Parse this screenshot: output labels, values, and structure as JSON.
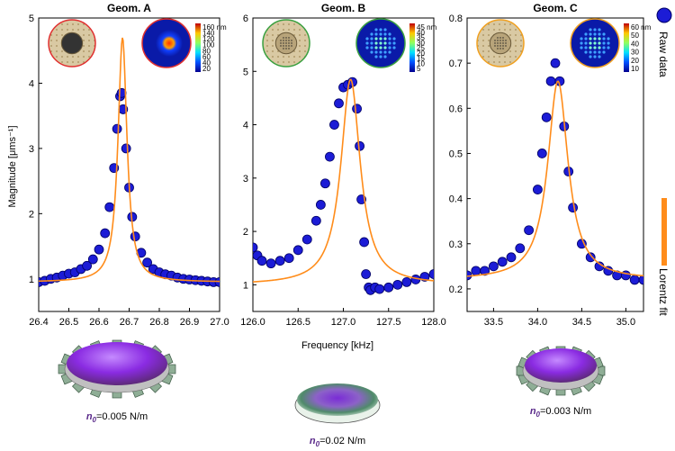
{
  "figure": {
    "y_axis_label": "Magnitude [μms⁻¹]",
    "x_axis_label": "Frequency [kHz]",
    "legend": {
      "raw": "Raw data",
      "fit": "Lorentz fit"
    },
    "colors": {
      "raw_fill": "#1c1cd6",
      "raw_edge": "#000066",
      "fit": "#ff8c1a"
    }
  },
  "chart_data": [
    {
      "type": "scatter",
      "title": "Geom. A",
      "xlabel": "Frequency [kHz]",
      "ylabel": "Magnitude [μms⁻¹]",
      "xlim": [
        26.4,
        27.0
      ],
      "ylim": [
        0.5,
        5.0
      ],
      "xticks": [
        26.4,
        26.5,
        26.6,
        26.7,
        26.8,
        26.9,
        27.0
      ],
      "xtick_labels": [
        "26.4",
        "26.5",
        "26.6",
        "26.7",
        "26.8",
        "26.9",
        "27.0"
      ],
      "yticks": [
        1,
        2,
        3,
        4,
        5
      ],
      "ytick_labels": [
        "1",
        "2",
        "3",
        "4",
        "5"
      ],
      "series": [
        {
          "name": "Raw data",
          "x": [
            26.4,
            26.42,
            26.44,
            26.46,
            26.48,
            26.5,
            26.52,
            26.54,
            26.56,
            26.58,
            26.6,
            26.62,
            26.635,
            26.65,
            26.66,
            26.67,
            26.675,
            26.68,
            26.69,
            26.7,
            26.71,
            26.72,
            26.74,
            26.76,
            26.78,
            26.8,
            26.82,
            26.84,
            26.86,
            26.88,
            26.9,
            26.92,
            26.94,
            26.96,
            26.98,
            27.0
          ],
          "y": [
            0.95,
            0.97,
            1.0,
            1.02,
            1.05,
            1.08,
            1.1,
            1.15,
            1.2,
            1.3,
            1.45,
            1.7,
            2.1,
            2.7,
            3.3,
            3.8,
            3.85,
            3.6,
            3.0,
            2.4,
            1.95,
            1.65,
            1.4,
            1.25,
            1.15,
            1.1,
            1.07,
            1.05,
            1.02,
            1.0,
            0.99,
            0.98,
            0.97,
            0.96,
            0.95,
            0.95
          ]
        },
        {
          "name": "Lorentz fit",
          "f0": 26.678,
          "gamma": 0.018,
          "peak": 3.75,
          "baseline": 0.95
        }
      ],
      "colorbar": {
        "unit": "nm",
        "labels": [
          "160",
          "140",
          "120",
          "100",
          "80",
          "60",
          "40",
          "20"
        ]
      },
      "stiffness_label": {
        "symbol": "n",
        "subscript": "0",
        "value": "=0.005 N/m"
      }
    },
    {
      "type": "scatter",
      "title": "Geom. B",
      "xlabel": "Frequency [kHz]",
      "ylabel": "",
      "xlim": [
        126.0,
        128.0
      ],
      "ylim": [
        0.5,
        6.0
      ],
      "xticks": [
        126.0,
        126.5,
        127.0,
        127.5,
        128.0
      ],
      "xtick_labels": [
        "126.0",
        "126.5",
        "127.0",
        "127.5",
        "128.0"
      ],
      "yticks": [
        1,
        2,
        3,
        4,
        5,
        6
      ],
      "ytick_labels": [
        "1",
        "2",
        "3",
        "4",
        "5",
        "6"
      ],
      "series": [
        {
          "name": "Raw data",
          "x": [
            126.0,
            126.05,
            126.1,
            126.2,
            126.3,
            126.4,
            126.5,
            126.6,
            126.7,
            126.75,
            126.8,
            126.85,
            126.9,
            126.95,
            127.0,
            127.05,
            127.1,
            127.15,
            127.18,
            127.2,
            127.23,
            127.25,
            127.28,
            127.3,
            127.35,
            127.4,
            127.5,
            127.6,
            127.7,
            127.8,
            127.9,
            128.0
          ],
          "y": [
            1.7,
            1.55,
            1.45,
            1.4,
            1.45,
            1.5,
            1.65,
            1.85,
            2.2,
            2.5,
            2.9,
            3.4,
            4.0,
            4.4,
            4.7,
            4.75,
            4.8,
            4.3,
            3.6,
            2.6,
            1.8,
            1.2,
            0.95,
            0.9,
            0.95,
            0.92,
            0.95,
            1.0,
            1.05,
            1.1,
            1.15,
            1.2
          ]
        },
        {
          "name": "Lorentz fit",
          "f0": 127.08,
          "gamma": 0.13,
          "peak": 3.85,
          "baseline": 1.0
        }
      ],
      "colorbar": {
        "unit": "nm",
        "labels": [
          "45",
          "40",
          "35",
          "30",
          "25",
          "20",
          "15",
          "10",
          "5"
        ]
      }
    },
    {
      "type": "scatter",
      "title": "Geom. C",
      "xlabel": "Frequency [kHz]",
      "ylabel": "",
      "xlim": [
        33.2,
        35.2
      ],
      "ylim": [
        0.15,
        0.8
      ],
      "xticks": [
        33.5,
        34.0,
        34.5,
        35.0
      ],
      "xtick_labels": [
        "33.5",
        "34.0",
        "34.5",
        "35.0"
      ],
      "yticks": [
        0.2,
        0.3,
        0.4,
        0.5,
        0.6,
        0.7,
        0.8
      ],
      "ytick_labels": [
        "0.2",
        "0.3",
        "0.4",
        "0.5",
        "0.6",
        "0.7",
        "0.8"
      ],
      "series": [
        {
          "name": "Raw data",
          "x": [
            33.2,
            33.3,
            33.4,
            33.5,
            33.6,
            33.7,
            33.8,
            33.9,
            34.0,
            34.05,
            34.1,
            34.15,
            34.2,
            34.25,
            34.3,
            34.35,
            34.4,
            34.5,
            34.6,
            34.7,
            34.8,
            34.9,
            35.0,
            35.1,
            35.2
          ],
          "y": [
            0.23,
            0.24,
            0.24,
            0.25,
            0.26,
            0.27,
            0.29,
            0.33,
            0.42,
            0.5,
            0.58,
            0.66,
            0.7,
            0.66,
            0.56,
            0.46,
            0.38,
            0.3,
            0.27,
            0.25,
            0.24,
            0.23,
            0.23,
            0.22,
            0.22
          ]
        },
        {
          "name": "Lorentz fit",
          "f0": 34.23,
          "gamma": 0.14,
          "peak": 0.44,
          "baseline": 0.22
        }
      ],
      "colorbar": {
        "unit": "nm",
        "labels": [
          "60",
          "50",
          "40",
          "30",
          "20",
          "10"
        ]
      },
      "stiffness_label": {
        "symbol": "n",
        "subscript": "0",
        "value": "=0.003 N/m"
      }
    }
  ],
  "bottom_labels": {
    "center": {
      "symbol": "n",
      "subscript": "0",
      "value": "=0.02 N/m"
    }
  }
}
